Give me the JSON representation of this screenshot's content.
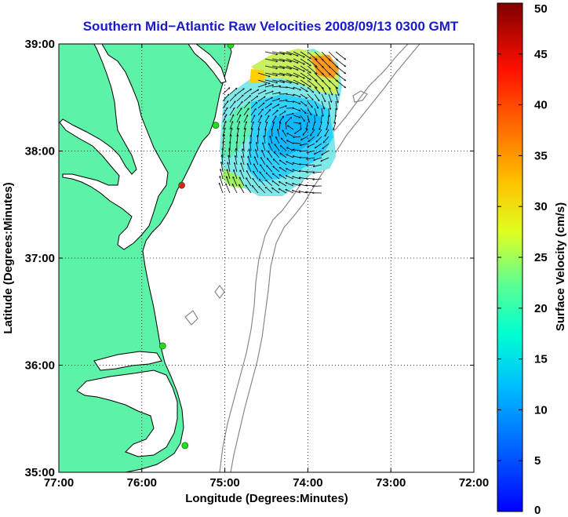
{
  "title": "Southern Mid−Atlantic Raw Velocities 2008/09/13 0300 GMT",
  "chart_data": {
    "type": "map",
    "xlabel": "Longitude (Degrees:Minutes)",
    "ylabel": "Latitude (Degrees:Minutes)",
    "x_ticks": [
      {
        "value": -77,
        "label": "77:00"
      },
      {
        "value": -76,
        "label": "76:00"
      },
      {
        "value": -75,
        "label": "75:00"
      },
      {
        "value": -74,
        "label": "74:00"
      },
      {
        "value": -73,
        "label": "73:00"
      },
      {
        "value": -72,
        "label": "72:00"
      }
    ],
    "y_ticks": [
      {
        "value": 35,
        "label": "35:00"
      },
      {
        "value": 36,
        "label": "36:00"
      },
      {
        "value": 37,
        "label": "37:00"
      },
      {
        "value": 38,
        "label": "38:00"
      },
      {
        "value": 39,
        "label": "39:00"
      }
    ],
    "xlim": [
      -77,
      -72
    ],
    "ylim": [
      35,
      39
    ],
    "grid": true,
    "colorbar": {
      "label": "Surface Velocity (cm/s)",
      "range": [
        0,
        50
      ],
      "ticks": [
        0,
        5,
        10,
        15,
        20,
        25,
        30,
        35,
        40,
        45,
        50
      ],
      "colormap": "jet"
    },
    "land_color": "#5cf2a8",
    "contour_color": "#888888",
    "stations": [
      {
        "lon": -74.93,
        "lat": 38.99,
        "color": "#22dd22"
      },
      {
        "lon": -75.11,
        "lat": 38.24,
        "color": "#22dd22"
      },
      {
        "lon": -75.52,
        "lat": 37.68,
        "color": "#dd2222"
      },
      {
        "lon": -75.75,
        "lat": 36.18,
        "color": "#22dd22"
      },
      {
        "lon": -75.48,
        "lat": 35.25,
        "color": "#22dd22"
      }
    ]
  }
}
